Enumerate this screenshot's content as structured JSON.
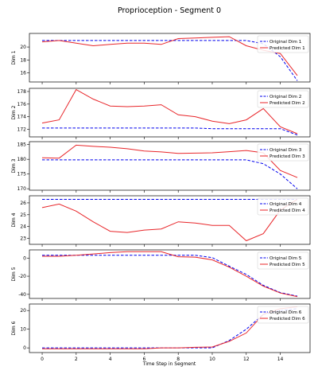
{
  "figure": {
    "title": "Proprioception - Segment 0",
    "xlabel": "Time Step in Segment"
  },
  "colors": {
    "original": "#0000ee",
    "predicted": "#e8262a",
    "axes": "#000000"
  },
  "chart_data": [
    {
      "type": "line",
      "ylabel": "Dim 1",
      "x": [
        0,
        1,
        2,
        3,
        4,
        5,
        6,
        7,
        8,
        9,
        10,
        11,
        12,
        13,
        14,
        15
      ],
      "xlim": [
        -0.75,
        15.75
      ],
      "xticks": [
        0,
        2,
        4,
        6,
        8,
        10,
        12,
        14
      ],
      "ylim": [
        14.6,
        22.1
      ],
      "yticks": [
        16,
        18,
        20
      ],
      "series": [
        {
          "name": "Original Dim 1",
          "style": "dashed",
          "values": [
            21.0,
            21.0,
            21.0,
            21.0,
            21.0,
            21.0,
            21.0,
            21.0,
            21.0,
            21.0,
            21.0,
            21.0,
            21.0,
            20.5,
            18.5,
            14.8
          ]
        },
        {
          "name": "Predicted Dim 1",
          "style": "solid",
          "values": [
            20.8,
            21.0,
            20.6,
            20.2,
            20.4,
            20.6,
            20.6,
            20.4,
            21.3,
            21.4,
            21.5,
            21.6,
            20.2,
            19.5,
            19.0,
            15.6
          ]
        }
      ]
    },
    {
      "type": "line",
      "ylabel": "Dim 2",
      "x": [
        0,
        1,
        2,
        3,
        4,
        5,
        6,
        7,
        8,
        9,
        10,
        11,
        12,
        13,
        14,
        15
      ],
      "xlim": [
        -0.75,
        15.75
      ],
      "xticks": [
        0,
        2,
        4,
        6,
        8,
        10,
        12,
        14
      ],
      "ylim": [
        170.8,
        178.5
      ],
      "yticks": [
        172,
        174,
        176,
        178
      ],
      "series": [
        {
          "name": "Original Dim 2",
          "style": "dashed",
          "values": [
            172.2,
            172.2,
            172.2,
            172.2,
            172.2,
            172.2,
            172.2,
            172.2,
            172.2,
            172.2,
            172.1,
            172.1,
            172.1,
            172.1,
            172.1,
            171.1
          ]
        },
        {
          "name": "Predicted Dim 2",
          "style": "solid",
          "values": [
            173.0,
            173.5,
            178.3,
            176.8,
            175.7,
            175.6,
            175.7,
            175.9,
            174.3,
            174.0,
            173.3,
            172.9,
            173.5,
            175.3,
            172.4,
            171.3
          ]
        }
      ]
    },
    {
      "type": "line",
      "ylabel": "Dim 3",
      "x": [
        0,
        1,
        2,
        3,
        4,
        5,
        6,
        7,
        8,
        9,
        10,
        11,
        12,
        13,
        14,
        15
      ],
      "xlim": [
        -0.75,
        15.75
      ],
      "xticks": [
        0,
        2,
        4,
        6,
        8,
        10,
        12,
        14
      ],
      "ylim": [
        169.5,
        186.0
      ],
      "yticks": [
        170,
        175,
        180,
        185
      ],
      "series": [
        {
          "name": "Original Dim 3",
          "style": "dashed",
          "values": [
            179.8,
            179.8,
            179.8,
            179.8,
            179.8,
            179.8,
            179.8,
            179.8,
            179.8,
            179.8,
            179.8,
            179.8,
            179.8,
            178.5,
            175.0,
            170.0
          ]
        },
        {
          "name": "Predicted Dim 3",
          "style": "solid",
          "values": [
            180.5,
            180.4,
            184.8,
            184.4,
            184.1,
            183.6,
            182.8,
            182.5,
            182.0,
            182.1,
            182.2,
            182.6,
            183.0,
            182.2,
            176.2,
            173.8
          ]
        }
      ]
    },
    {
      "type": "line",
      "ylabel": "Dim 4",
      "x": [
        0,
        1,
        2,
        3,
        4,
        5,
        6,
        7,
        8,
        9,
        10,
        11,
        12,
        13,
        14,
        15
      ],
      "xlim": [
        -0.75,
        15.75
      ],
      "xticks": [
        0,
        2,
        4,
        6,
        8,
        10,
        12,
        14
      ],
      "ylim": [
        22.5,
        26.6
      ],
      "yticks": [
        23,
        24,
        25,
        26
      ],
      "series": [
        {
          "name": "Original Dim 4",
          "style": "dashed",
          "values": [
            26.3,
            26.3,
            26.3,
            26.3,
            26.3,
            26.3,
            26.3,
            26.3,
            26.3,
            26.3,
            26.3,
            26.3,
            26.3,
            26.3,
            26.3,
            26.3
          ]
        },
        {
          "name": "Predicted Dim 4",
          "style": "solid",
          "values": [
            25.6,
            25.9,
            25.3,
            24.4,
            23.6,
            23.5,
            23.7,
            23.8,
            24.4,
            24.3,
            24.1,
            24.1,
            22.8,
            23.4,
            25.4,
            26.3
          ]
        }
      ]
    },
    {
      "type": "line",
      "ylabel": "Dim 5",
      "x": [
        0,
        1,
        2,
        3,
        4,
        5,
        6,
        7,
        8,
        9,
        10,
        11,
        12,
        13,
        14,
        15
      ],
      "xlim": [
        -0.75,
        15.75
      ],
      "xticks": [
        0,
        2,
        4,
        6,
        8,
        10,
        12,
        14
      ],
      "ylim": [
        -44.5,
        9.0
      ],
      "yticks": [
        -40,
        -20,
        0
      ],
      "series": [
        {
          "name": "Original Dim 5",
          "style": "dashed",
          "values": [
            3.0,
            3.0,
            3.0,
            3.0,
            3.0,
            3.0,
            3.0,
            3.0,
            3.0,
            3.0,
            0.5,
            -9.0,
            -18.0,
            -30.0,
            -38.0,
            -42.0
          ]
        },
        {
          "name": "Predicted Dim 5",
          "style": "solid",
          "values": [
            2.0,
            2.0,
            3.0,
            4.5,
            6.0,
            7.0,
            7.0,
            7.0,
            1.5,
            1.0,
            -2.0,
            -10.0,
            -20.0,
            -31.0,
            -38.5,
            -42.5
          ]
        }
      ]
    },
    {
      "type": "line",
      "ylabel": "Dim 6",
      "x": [
        0,
        1,
        2,
        3,
        4,
        5,
        6,
        7,
        8,
        9,
        10,
        11,
        12,
        13,
        14,
        15
      ],
      "xlim": [
        -0.75,
        15.75
      ],
      "xticks": [
        0,
        2,
        4,
        6,
        8,
        10,
        12,
        14
      ],
      "ylim": [
        -2.5,
        23.5
      ],
      "yticks": [
        0,
        10,
        20
      ],
      "series": [
        {
          "name": "Original Dim 6",
          "style": "dashed",
          "values": [
            0.0,
            0.0,
            0.0,
            0.0,
            0.0,
            0.0,
            0.0,
            0.0,
            0.0,
            0.0,
            0.0,
            4.0,
            10.0,
            18.0,
            20.0,
            21.0
          ]
        },
        {
          "name": "Predicted Dim 6",
          "style": "solid",
          "values": [
            -0.5,
            -0.5,
            -0.5,
            -0.5,
            -0.5,
            -0.5,
            -0.5,
            0.0,
            0.0,
            0.3,
            0.5,
            3.5,
            8.0,
            18.0,
            21.0,
            22.0
          ]
        }
      ]
    }
  ]
}
